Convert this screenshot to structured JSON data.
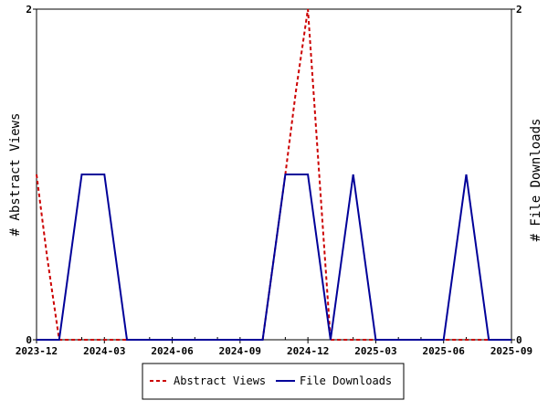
{
  "chart_data": {
    "type": "line",
    "x": [
      "2023-12",
      "2024-01",
      "2024-02",
      "2024-03",
      "2024-04",
      "2024-05",
      "2024-06",
      "2024-07",
      "2024-08",
      "2024-09",
      "2024-10",
      "2024-11",
      "2024-12",
      "2025-01",
      "2025-02",
      "2025-03",
      "2025-04",
      "2025-05",
      "2025-06",
      "2025-07",
      "2025-08",
      "2025-09"
    ],
    "x_ticks": [
      "2023-12",
      "2024-03",
      "2024-06",
      "2024-09",
      "2024-12",
      "2025-03",
      "2025-06",
      "2025-09"
    ],
    "series": [
      {
        "name": "Abstract Views",
        "axis": "left",
        "color": "#cc0000",
        "dash": true,
        "points": [
          [
            "2023-12",
            1
          ],
          [
            "2023-12-15",
            0.5
          ],
          [
            "2024-01",
            0
          ],
          [
            "2024-10",
            0
          ],
          [
            "2024-11",
            1
          ],
          [
            "2024-11-15",
            1.5
          ],
          [
            "2024-12",
            2
          ],
          [
            "2025-01",
            0
          ],
          [
            "2025-09",
            0
          ]
        ]
      },
      {
        "name": "File Downloads",
        "axis": "right",
        "color": "#000099",
        "dash": false,
        "points": [
          [
            "2023-12",
            0
          ],
          [
            "2024-01",
            0
          ],
          [
            "2024-02",
            1
          ],
          [
            "2024-03",
            1
          ],
          [
            "2024-04",
            0
          ],
          [
            "2024-10",
            0
          ],
          [
            "2024-11",
            1
          ],
          [
            "2024-12",
            1
          ],
          [
            "2025-01",
            0
          ],
          [
            "2025-02",
            1
          ],
          [
            "2025-03",
            0
          ],
          [
            "2025-06",
            0
          ],
          [
            "2025-07",
            1
          ],
          [
            "2025-08",
            0
          ],
          [
            "2025-09",
            0
          ]
        ]
      }
    ],
    "ylabel": "# Abstract Views",
    "ylabel_right": "# File Downloads",
    "ylim": [
      0,
      2
    ],
    "ylim_right": [
      0,
      2
    ],
    "yticks": [
      0,
      2
    ],
    "yticks_right": [
      0,
      2
    ],
    "grid": false,
    "legend_position": "bottom"
  }
}
